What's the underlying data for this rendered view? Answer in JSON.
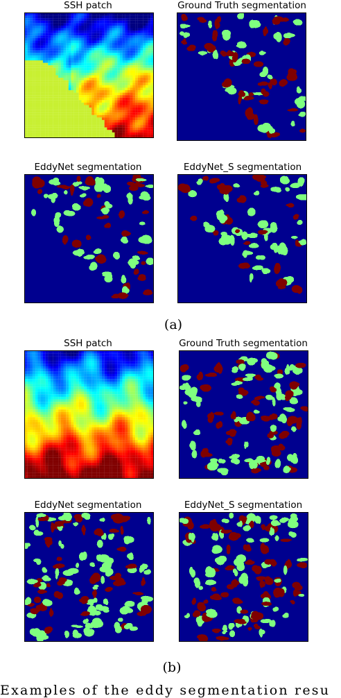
{
  "figure": {
    "a": {
      "label": "(a)",
      "ssh_title": "SSH patch",
      "gt_title": "Ground Truth segmentation",
      "eddynet_title": "EddyNet segmentation",
      "eddynet_s_title": "EddyNet_S segmentation"
    },
    "b": {
      "label": "(b)",
      "ssh_title": "SSH patch",
      "gt_title": "Ground Truth segmentation",
      "eddynet_title": "EddyNet segmentation",
      "eddynet_s_title": "EddyNet_S segmentation"
    },
    "caption": "Examples of the eddy segmentation resu"
  },
  "colors": {
    "background_class": "#00008f",
    "anticyclonic_class": "#7fff7f",
    "cyclonic_class": "#7f0000",
    "land": "#c8f032"
  }
}
